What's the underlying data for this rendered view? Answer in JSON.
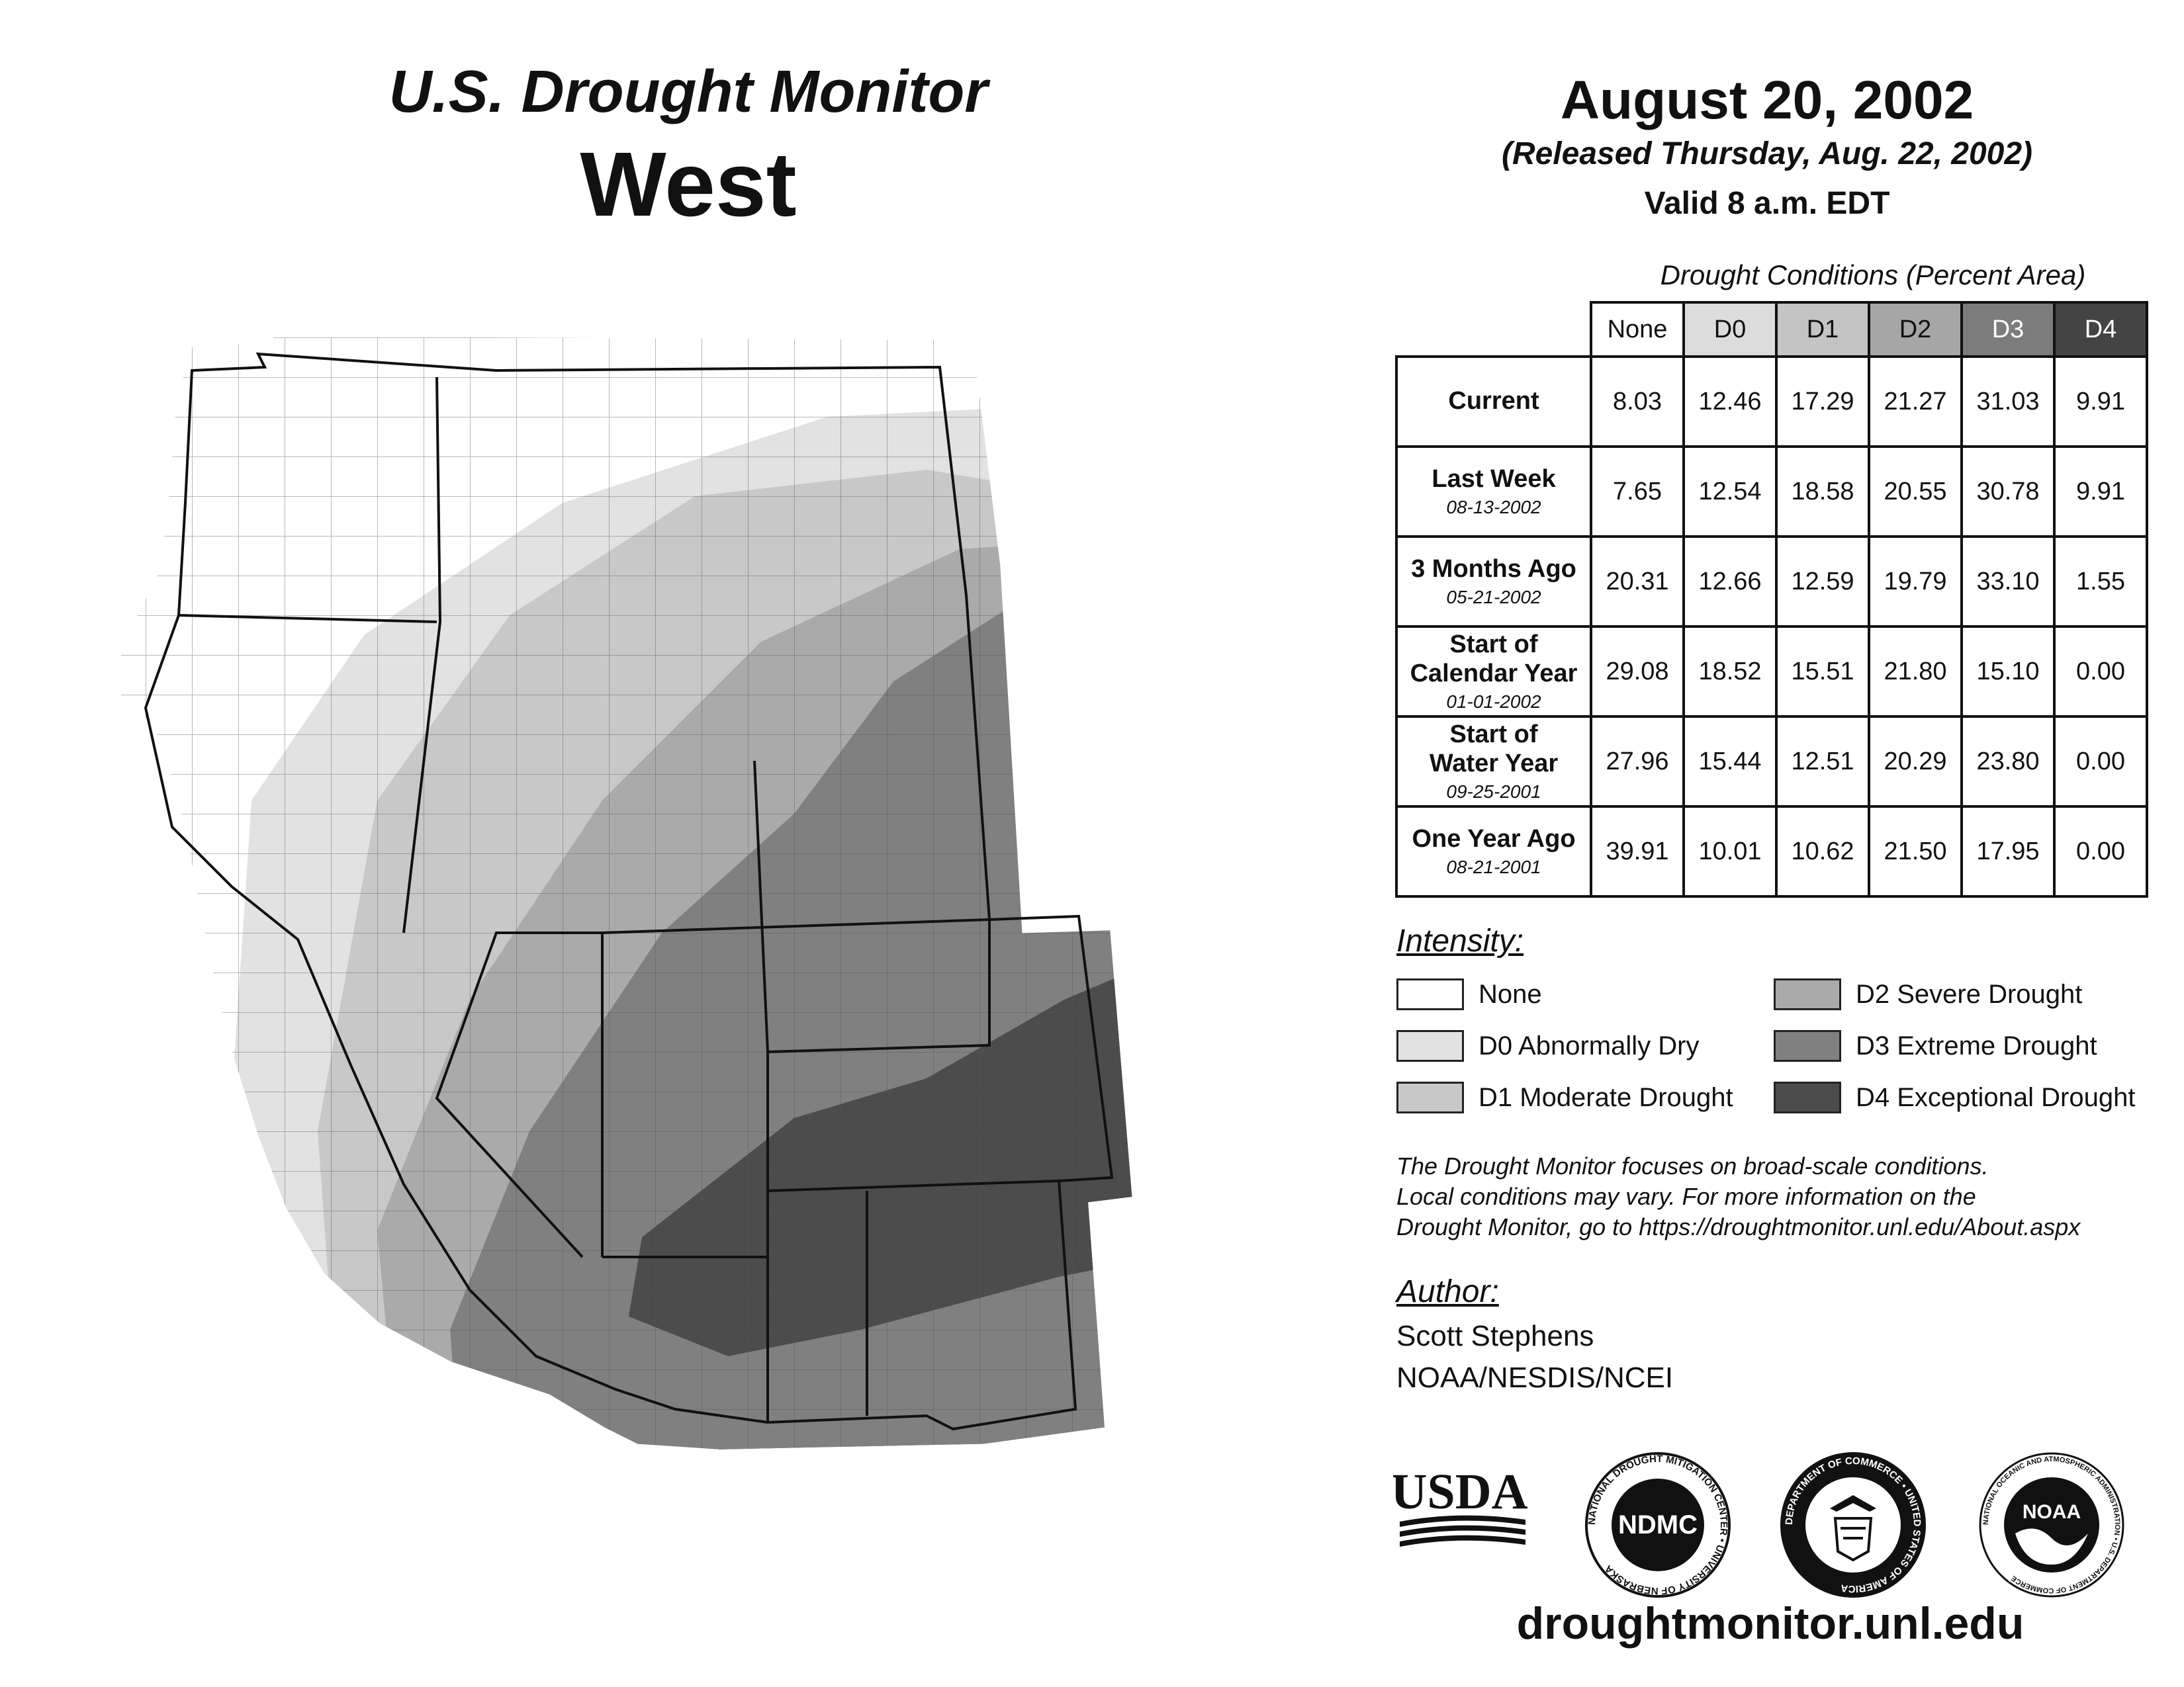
{
  "header": {
    "product": "U.S. Drought Monitor",
    "region": "West",
    "date": "August 20, 2002",
    "released": "(Released Thursday, Aug. 22, 2002)",
    "valid": "Valid 8 a.m. EDT"
  },
  "conditions": {
    "title": "Drought Conditions (Percent Area)",
    "columns": [
      "None",
      "D0",
      "D1",
      "D2",
      "D3",
      "D4"
    ],
    "rows": [
      {
        "label": "Current",
        "label2": "",
        "date": "",
        "values": [
          "8.03",
          "12.46",
          "17.29",
          "21.27",
          "31.03",
          "9.91"
        ]
      },
      {
        "label": "Last Week",
        "label2": "",
        "date": "08-13-2002",
        "values": [
          "7.65",
          "12.54",
          "18.58",
          "20.55",
          "30.78",
          "9.91"
        ]
      },
      {
        "label": "3 Months Ago",
        "label2": "",
        "date": "05-21-2002",
        "values": [
          "20.31",
          "12.66",
          "12.59",
          "19.79",
          "33.10",
          "1.55"
        ]
      },
      {
        "label": "Start of",
        "label2": "Calendar Year",
        "date": "01-01-2002",
        "values": [
          "29.08",
          "18.52",
          "15.51",
          "21.80",
          "15.10",
          "0.00"
        ]
      },
      {
        "label": "Start of",
        "label2": "Water Year",
        "date": "09-25-2001",
        "values": [
          "27.96",
          "15.44",
          "12.51",
          "20.29",
          "23.80",
          "0.00"
        ]
      },
      {
        "label": "One Year Ago",
        "label2": "",
        "date": "08-21-2001",
        "values": [
          "39.91",
          "10.01",
          "10.62",
          "21.50",
          "17.95",
          "0.00"
        ]
      }
    ]
  },
  "legend": {
    "title": "Intensity:",
    "items": [
      {
        "label": "None",
        "color": "#ffffff"
      },
      {
        "label": "D0 Abnormally Dry",
        "color": "#e2e2e2"
      },
      {
        "label": "D1 Moderate Drought",
        "color": "#c8c8c8"
      },
      {
        "label": "D2 Severe Drought",
        "color": "#aaaaaa"
      },
      {
        "label": "D3 Extreme Drought",
        "color": "#808080"
      },
      {
        "label": "D4 Exceptional Drought",
        "color": "#4c4c4c"
      }
    ]
  },
  "header_colors": [
    "#ffffff",
    "#dcdcdc",
    "#c4c4c4",
    "#a6a6a6",
    "#7c7c7c",
    "#444444"
  ],
  "disclaimer": [
    "The Drought Monitor focuses on broad-scale conditions.",
    "Local conditions may vary. For more information on the",
    "Drought Monitor, go to https://droughtmonitor.unl.edu/About.aspx"
  ],
  "author": {
    "title": "Author:",
    "name": "Scott Stephens",
    "org": "NOAA/NESDIS/NCEI"
  },
  "logos": {
    "usda": "USDA",
    "ndmc": "NDMC",
    "ndmc_ring": "NATIONAL DROUGHT MITIGATION CENTER • UNIVERSITY OF NEBRASKA",
    "doc_ring": "DEPARTMENT OF COMMERCE • UNITED STATES OF AMERICA",
    "noaa": "NOAA",
    "noaa_ring": "NATIONAL OCEANIC AND ATMOSPHERIC ADMINISTRATION • U.S. DEPARTMENT OF COMMERCE"
  },
  "website": "droughtmonitor.unl.edu"
}
